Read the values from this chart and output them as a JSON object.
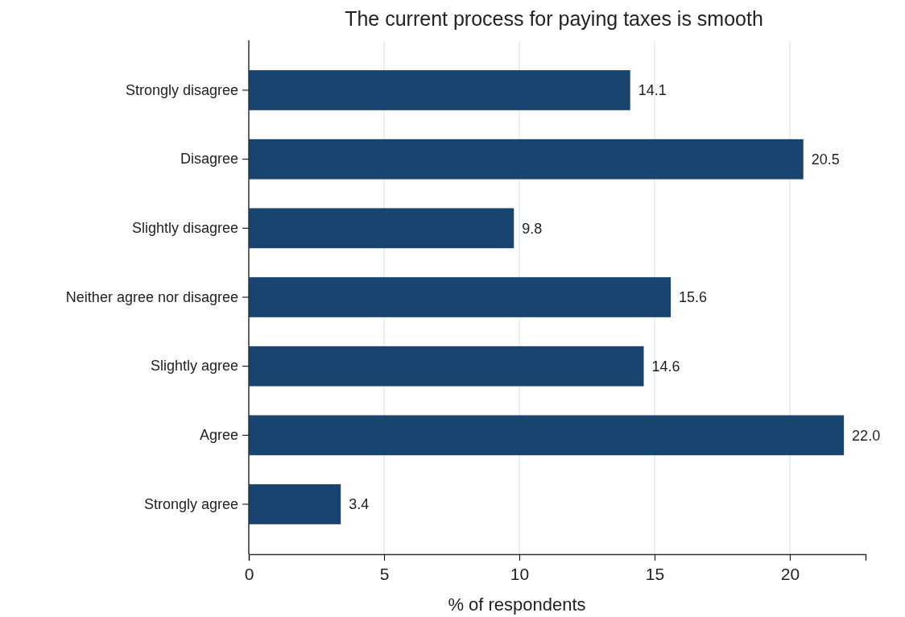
{
  "chart_data": {
    "type": "bar",
    "orientation": "horizontal",
    "title": "The current process for paying taxes is smooth",
    "xlabel": "% of respondents",
    "categories": [
      "Strongly disagree",
      "Disagree",
      "Slightly disagree",
      "Neither agree nor disagree",
      "Slightly agree",
      "Agree",
      "Strongly agree"
    ],
    "values": [
      14.1,
      20.5,
      9.8,
      15.6,
      14.6,
      22.0,
      3.4
    ],
    "value_labels": [
      "14.1",
      "20.5",
      "9.8",
      "15.6",
      "14.6",
      "22.0",
      "3.4"
    ],
    "color": "#1a4470",
    "xlim": [
      0,
      22.8
    ],
    "xticks": [
      0,
      5,
      10,
      15,
      20
    ],
    "grid": "x"
  }
}
